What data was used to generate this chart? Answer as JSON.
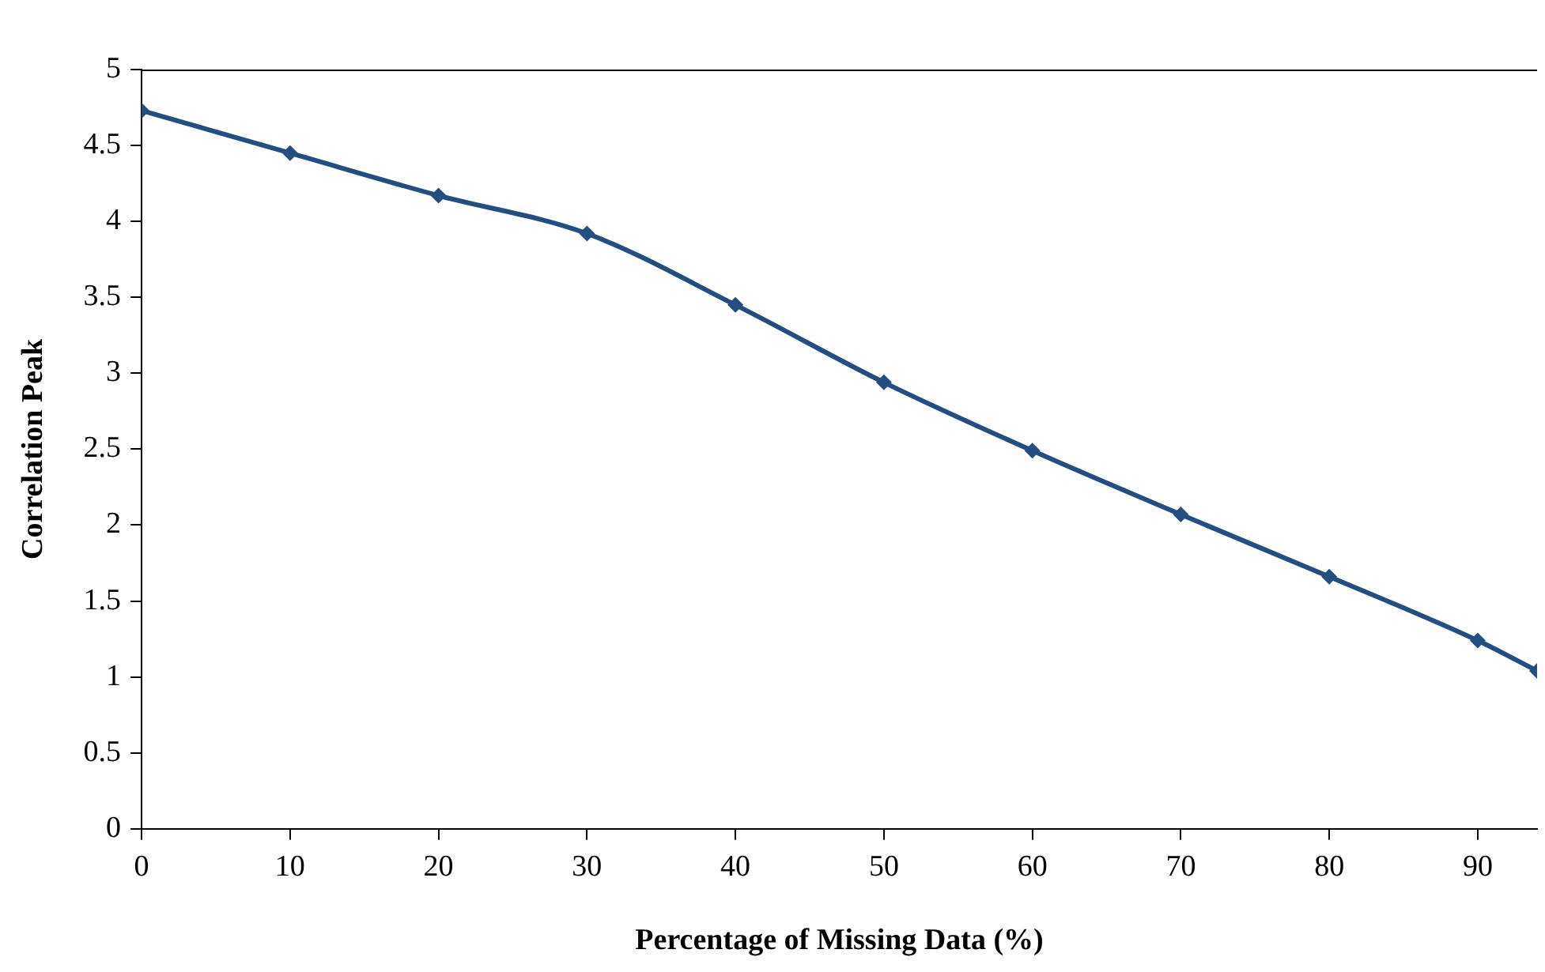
{
  "chart_data": {
    "type": "line",
    "xlabel": "Percentage of Missing Data (%)",
    "ylabel": "Correlation Peak",
    "x": [
      0,
      10,
      20,
      30,
      40,
      50,
      60,
      70,
      80,
      90,
      94
    ],
    "series": [
      {
        "color": "#254e80",
        "values": [
          4.73,
          4.45,
          4.17,
          3.92,
          3.45,
          2.94,
          2.49,
          2.07,
          1.66,
          1.24,
          1.04
        ]
      }
    ],
    "xlim": [
      0,
      94
    ],
    "xticks": [
      0,
      10,
      20,
      30,
      40,
      50,
      60,
      70,
      80,
      90
    ],
    "ylim": [
      0,
      5
    ],
    "yticks": [
      0,
      0.5,
      1,
      1.5,
      2,
      2.5,
      3,
      3.5,
      4,
      4.5,
      5
    ],
    "grid": false,
    "legend": false,
    "marker": "diamond",
    "line_style": "solid"
  }
}
